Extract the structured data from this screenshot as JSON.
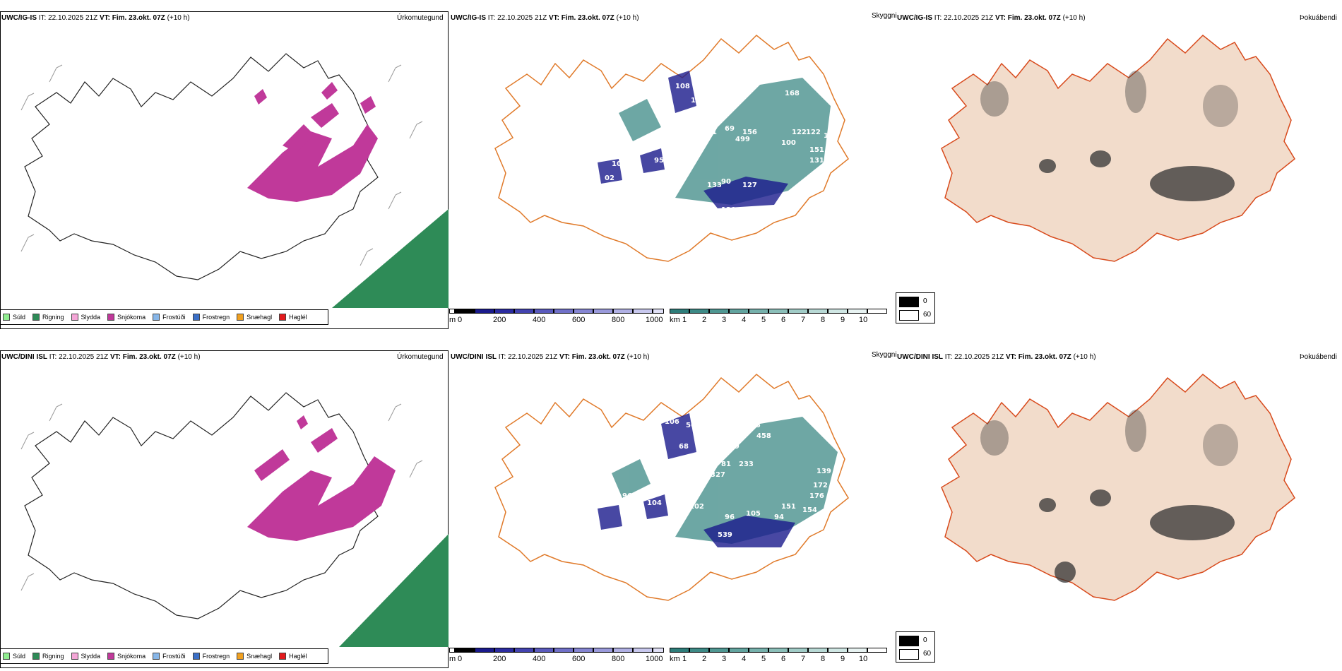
{
  "rows": [
    {
      "model": "UWC/IG-IS",
      "it_label": "IT:",
      "it_value": "22.10.2025 21Z",
      "vt_label": "VT:",
      "vt_value": "Fim. 23.okt. 07Z",
      "lead": "(+10 h)",
      "numbers": [
        "108",
        "136",
        "157",
        "70",
        "59",
        "139",
        "51",
        "69",
        "156",
        "499",
        "122",
        "122",
        "100",
        "95",
        "99",
        "133",
        "90",
        "127",
        "120",
        "101",
        "02",
        "304",
        "168",
        "151",
        "12",
        "131",
        "11"
      ]
    },
    {
      "model": "UWC/DINI ISL",
      "it_label": "IT:",
      "it_value": "22.10.2025 21Z",
      "vt_label": "VT:",
      "vt_value": "Fim. 23.okt. 07Z",
      "lead": "(+10 h)",
      "numbers": [
        "106",
        "56",
        "07",
        "186",
        "68",
        "04",
        "119",
        "327",
        "81",
        "233",
        "151",
        "94",
        "105",
        "96",
        "102",
        "539",
        "104",
        "101",
        "96",
        "176",
        "172",
        "154",
        "139",
        "458",
        "275"
      ]
    }
  ],
  "panel_titles": {
    "precip": "Úrkomutegund",
    "visibility": "Skyggni",
    "fog": "Þokuábendi"
  },
  "precip_legend": [
    {
      "label": "Súld",
      "color": "#90ee90"
    },
    {
      "label": "Rigning",
      "color": "#2e8b57"
    },
    {
      "label": "Slydda",
      "color": "#f4a6d7"
    },
    {
      "label": "Snjókoma",
      "color": "#c0399a"
    },
    {
      "label": "Frostúði",
      "color": "#87b6e8"
    },
    {
      "label": "Frostregn",
      "color": "#3a6fc7"
    },
    {
      "label": "Snæhagl",
      "color": "#f0a020"
    },
    {
      "label": "Haglél",
      "color": "#e31a1c"
    }
  ],
  "cloud_base_bar": {
    "unit": "m",
    "ticks": [
      "0",
      "200",
      "400",
      "600",
      "800",
      "1000"
    ],
    "colors": [
      "#000000",
      "#1a1a8c",
      "#2b2ba0",
      "#4343b0",
      "#5a5abd",
      "#7070c8",
      "#8585d2",
      "#9a9adb",
      "#b0b0e4",
      "#c8c8ee",
      "#e0e0f6"
    ]
  },
  "visibility_bar": {
    "unit": "km",
    "ticks": [
      "1",
      "2",
      "3",
      "4",
      "5",
      "6",
      "7",
      "8",
      "9",
      "10"
    ],
    "colors": [
      "#2e7d7a",
      "#3d8a86",
      "#4f9792",
      "#62a49f",
      "#76b1ac",
      "#8bbfb9",
      "#a1ccc7",
      "#b8d9d5",
      "#d0e7e4",
      "#e8f3f2",
      "#ffffff"
    ]
  },
  "fog_legend": [
    {
      "label": "0",
      "color": "#000000"
    },
    {
      "label": "60",
      "color": "#ffffff"
    }
  ]
}
